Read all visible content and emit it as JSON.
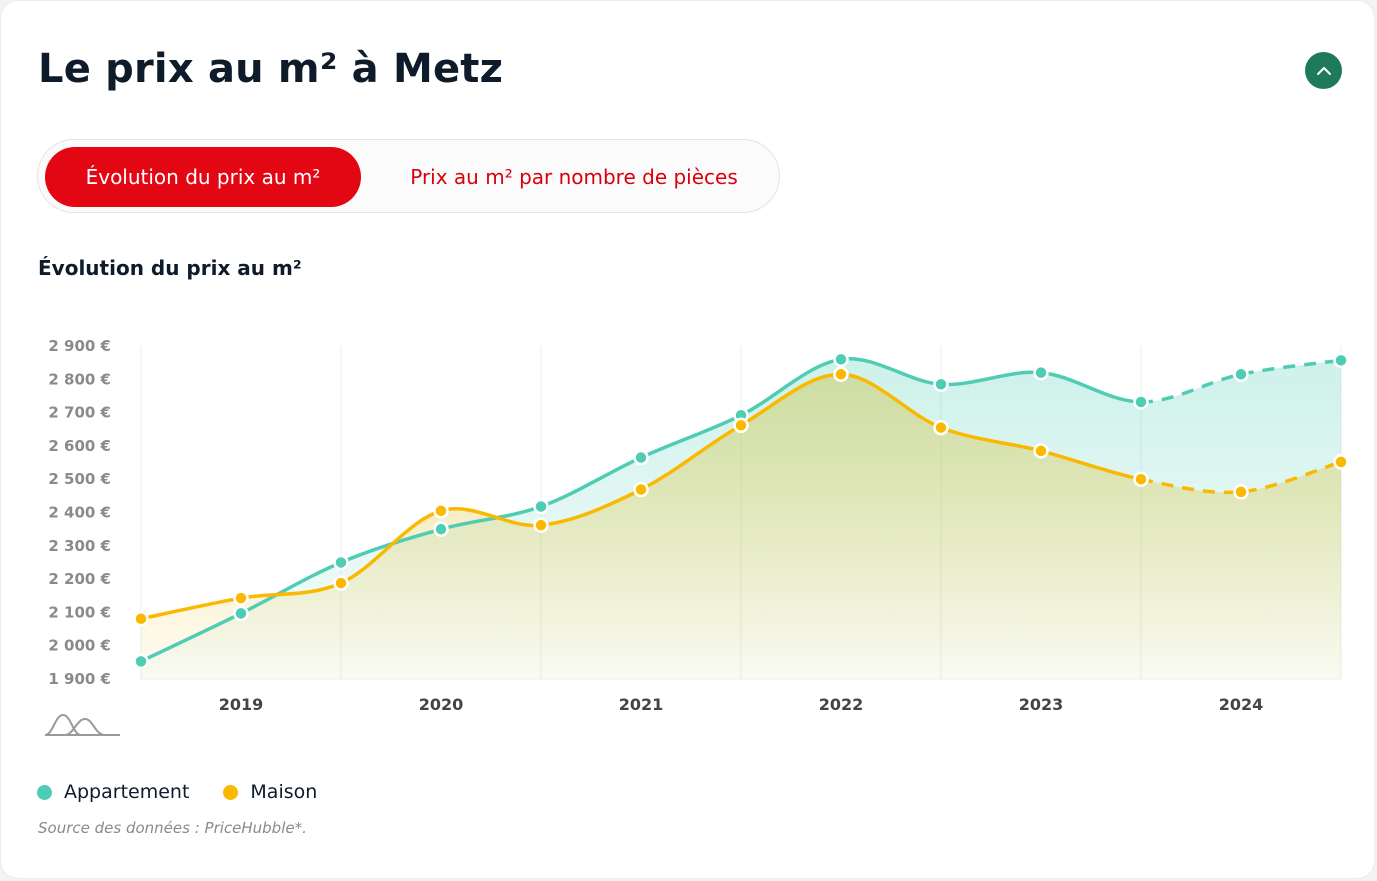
{
  "page": {
    "title": "Le prix au m² à Metz",
    "collapse_icon": "chevron-up-icon"
  },
  "tabs": [
    {
      "label": "Évolution du prix au m²",
      "active": true
    },
    {
      "label": "Prix au m² par nombre de pièces",
      "active": false
    }
  ],
  "chart_heading": "Évolution du prix au m²",
  "chart_data": {
    "type": "area",
    "title": "Évolution du prix au m²",
    "x_ticks": [
      "2019",
      "2020",
      "2021",
      "2022",
      "2023",
      "2024"
    ],
    "y_ticks": [
      "1 900 €",
      "2 000 €",
      "2 100 €",
      "2 200 €",
      "2 300 €",
      "2 400 €",
      "2 500 €",
      "2 600 €",
      "2 700 €",
      "2 800 €",
      "2 900 €"
    ],
    "ylim": [
      1900,
      2900
    ],
    "x": [
      2018.5,
      2019.0,
      2019.5,
      2020.0,
      2020.5,
      2021.0,
      2021.5,
      2022.0,
      2022.5,
      2023.0,
      2023.5,
      2024.0,
      2024.5
    ],
    "xlim": [
      2018.5,
      2024.5
    ],
    "projected_from_x": 2023.5,
    "grid": "vertical",
    "legend": "bottom-left",
    "series": [
      {
        "name": "Appartement",
        "color": "#4ecdb4",
        "values": [
          1953,
          2097,
          2250,
          2350,
          2418,
          2565,
          2692,
          2860,
          2785,
          2820,
          2732,
          2815,
          2857
        ]
      },
      {
        "name": "Maison",
        "color": "#fbb800",
        "values": [
          2081,
          2143,
          2188,
          2405,
          2362,
          2469,
          2662,
          2815,
          2655,
          2585,
          2500,
          2462,
          2552
        ]
      }
    ]
  },
  "legend": [
    {
      "label": "Appartement",
      "color": "#4ecdb4"
    },
    {
      "label": "Maison",
      "color": "#fbb800"
    }
  ],
  "source_text": "Source des données : PriceHubble*.",
  "colors": {
    "accent_red": "#e30613",
    "accent_green": "#1f7a5c"
  }
}
